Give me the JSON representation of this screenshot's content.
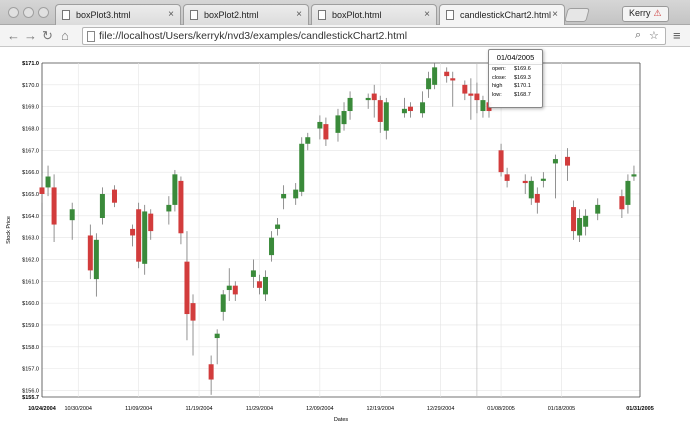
{
  "browser": {
    "tabs": [
      {
        "label": "boxPlot3.html"
      },
      {
        "label": "boxPlot2.html"
      },
      {
        "label": "boxPlot.html"
      },
      {
        "label": "candlestickChart2.html"
      }
    ],
    "profile_name": "Kerry",
    "url": "file://localhost/Users/kerryk/nvd3/examples/candlestickChart2.html",
    "icons": [
      "back-icon",
      "forward-icon",
      "reload-icon",
      "home-icon",
      "search-icon",
      "star-icon",
      "menu-icon"
    ]
  },
  "tooltip": {
    "date": "01/04/2005",
    "rows": [
      {
        "key": "open:",
        "value": "$169.6"
      },
      {
        "key": "close:",
        "value": "$169.3"
      },
      {
        "key": "high",
        "value": "$170.1"
      },
      {
        "key": "low:",
        "value": "$168.7"
      }
    ]
  },
  "chart_data": {
    "type": "candlestick",
    "title": "",
    "xlabel": "Dates",
    "ylabel": "Stock Price",
    "ylim": [
      155.7,
      171.0
    ],
    "xlim": [
      "10/24/2004",
      "01/31/2005"
    ],
    "x_ticks": [
      "10/24/2004",
      "10/30/2004",
      "11/09/2004",
      "11/19/2004",
      "11/29/2004",
      "12/09/2004",
      "12/19/2004",
      "12/29/2004",
      "01/08/2005",
      "01/18/2005",
      "01/31/2005"
    ],
    "y_ticks": [
      "$155.7",
      "$156.0",
      "$157.0",
      "$158.0",
      "$159.0",
      "$160.0",
      "$161.0",
      "$162.0",
      "$163.0",
      "$164.0",
      "$165.0",
      "$166.0",
      "$167.0",
      "$168.0",
      "$169.0",
      "$170.0",
      "$171.0"
    ],
    "up_color": "#3a8a3a",
    "down_color": "#d23c3c",
    "grid": true,
    "candles": [
      {
        "date": "10/24/2004",
        "open": 165.3,
        "close": 165.0,
        "high": 165.8,
        "low": 164.6
      },
      {
        "date": "10/25/2004",
        "open": 165.3,
        "close": 165.8,
        "high": 166.3,
        "low": 164.9
      },
      {
        "date": "10/26/2004",
        "open": 165.3,
        "close": 163.6,
        "high": 165.9,
        "low": 162.8
      },
      {
        "date": "10/29/2004",
        "open": 163.8,
        "close": 164.3,
        "high": 164.6,
        "low": 162.9
      },
      {
        "date": "11/01/2004",
        "open": 163.1,
        "close": 161.5,
        "high": 163.6,
        "low": 161.1
      },
      {
        "date": "11/02/2004",
        "open": 161.1,
        "close": 162.9,
        "high": 163.2,
        "low": 160.3
      },
      {
        "date": "11/03/2004",
        "open": 163.9,
        "close": 165.0,
        "high": 165.3,
        "low": 163.6
      },
      {
        "date": "11/05/2004",
        "open": 165.2,
        "close": 164.6,
        "high": 165.4,
        "low": 164.4
      },
      {
        "date": "11/08/2004",
        "open": 163.4,
        "close": 163.1,
        "high": 163.6,
        "low": 162.6
      },
      {
        "date": "11/09/2004",
        "open": 164.3,
        "close": 161.9,
        "high": 164.6,
        "low": 161.6
      },
      {
        "date": "11/10/2004",
        "open": 161.8,
        "close": 164.2,
        "high": 164.5,
        "low": 161.3
      },
      {
        "date": "11/11/2004",
        "open": 164.1,
        "close": 163.3,
        "high": 164.3,
        "low": 162.9
      },
      {
        "date": "11/14/2004",
        "open": 164.2,
        "close": 164.5,
        "high": 164.9,
        "low": 163.6
      },
      {
        "date": "11/15/2004",
        "open": 164.5,
        "close": 165.9,
        "high": 166.1,
        "low": 164.2
      },
      {
        "date": "11/16/2004",
        "open": 165.6,
        "close": 163.2,
        "high": 165.8,
        "low": 162.7
      },
      {
        "date": "11/17/2004",
        "open": 161.9,
        "close": 159.5,
        "high": 163.3,
        "low": 158.3
      },
      {
        "date": "11/18/2004",
        "open": 160.0,
        "close": 159.2,
        "high": 160.4,
        "low": 157.6
      },
      {
        "date": "11/21/2004",
        "open": 157.2,
        "close": 156.5,
        "high": 157.6,
        "low": 155.8
      },
      {
        "date": "11/22/2004",
        "open": 158.4,
        "close": 158.6,
        "high": 158.8,
        "low": 157.2
      },
      {
        "date": "11/23/2004",
        "open": 159.6,
        "close": 160.4,
        "high": 160.6,
        "low": 159.2
      },
      {
        "date": "11/24/2004",
        "open": 160.6,
        "close": 160.8,
        "high": 161.6,
        "low": 160.1
      },
      {
        "date": "11/25/2004",
        "open": 160.8,
        "close": 160.4,
        "high": 161.0,
        "low": 160.1
      },
      {
        "date": "11/28/2004",
        "open": 161.2,
        "close": 161.5,
        "high": 162.0,
        "low": 160.7
      },
      {
        "date": "11/29/2004",
        "open": 161.0,
        "close": 160.7,
        "high": 161.3,
        "low": 160.4
      },
      {
        "date": "11/30/2004",
        "open": 160.4,
        "close": 161.2,
        "high": 161.5,
        "low": 160.1
      },
      {
        "date": "12/01/2004",
        "open": 162.2,
        "close": 163.0,
        "high": 163.3,
        "low": 161.9
      },
      {
        "date": "12/02/2004",
        "open": 163.4,
        "close": 163.6,
        "high": 163.9,
        "low": 163.1
      },
      {
        "date": "12/03/2004",
        "open": 164.8,
        "close": 165.0,
        "high": 165.4,
        "low": 164.3
      },
      {
        "date": "12/05/2004",
        "open": 164.8,
        "close": 165.2,
        "high": 165.5,
        "low": 164.5
      },
      {
        "date": "12/06/2004",
        "open": 165.1,
        "close": 167.3,
        "high": 167.6,
        "low": 164.9
      },
      {
        "date": "12/07/2004",
        "open": 167.3,
        "close": 167.6,
        "high": 167.8,
        "low": 167.0
      },
      {
        "date": "12/09/2004",
        "open": 168.0,
        "close": 168.3,
        "high": 168.6,
        "low": 167.5
      },
      {
        "date": "12/10/2004",
        "open": 168.2,
        "close": 167.5,
        "high": 168.5,
        "low": 167.2
      },
      {
        "date": "12/12/2004",
        "open": 167.8,
        "close": 168.6,
        "high": 168.9,
        "low": 167.4
      },
      {
        "date": "12/13/2004",
        "open": 168.2,
        "close": 168.8,
        "high": 169.2,
        "low": 167.9
      },
      {
        "date": "12/14/2004",
        "open": 168.8,
        "close": 169.4,
        "high": 169.7,
        "low": 168.4
      },
      {
        "date": "12/17/2004",
        "open": 169.3,
        "close": 169.4,
        "high": 169.6,
        "low": 168.9
      },
      {
        "date": "12/18/2004",
        "open": 169.6,
        "close": 169.3,
        "high": 170.0,
        "low": 168.5
      },
      {
        "date": "12/19/2004",
        "open": 169.3,
        "close": 168.3,
        "high": 169.5,
        "low": 167.8
      },
      {
        "date": "12/20/2004",
        "open": 167.9,
        "close": 169.2,
        "high": 169.4,
        "low": 167.5
      },
      {
        "date": "12/23/2004",
        "open": 168.7,
        "close": 168.9,
        "high": 169.4,
        "low": 168.5
      },
      {
        "date": "12/24/2004",
        "open": 169.0,
        "close": 168.8,
        "high": 169.2,
        "low": 168.5
      },
      {
        "date": "12/26/2004",
        "open": 168.7,
        "close": 169.2,
        "high": 169.7,
        "low": 168.5
      },
      {
        "date": "12/27/2004",
        "open": 169.8,
        "close": 170.3,
        "high": 170.6,
        "low": 169.4
      },
      {
        "date": "12/28/2004",
        "open": 170.0,
        "close": 170.8,
        "high": 171.0,
        "low": 169.8
      },
      {
        "date": "12/30/2004",
        "open": 170.6,
        "close": 170.4,
        "high": 170.8,
        "low": 170.1
      },
      {
        "date": "12/31/2004",
        "open": 170.3,
        "close": 170.2,
        "high": 170.6,
        "low": 169.0
      },
      {
        "date": "01/02/2005",
        "open": 170.0,
        "close": 169.6,
        "high": 170.2,
        "low": 169.3
      },
      {
        "date": "01/03/2005",
        "open": 169.6,
        "close": 169.5,
        "high": 170.3,
        "low": 168.4
      },
      {
        "date": "01/04/2005",
        "open": 169.6,
        "close": 169.3,
        "high": 170.1,
        "low": 168.7
      },
      {
        "date": "01/05/2005",
        "open": 168.8,
        "close": 169.3,
        "high": 169.5,
        "low": 168.5
      },
      {
        "date": "01/06/2005",
        "open": 169.2,
        "close": 168.8,
        "high": 169.6,
        "low": 168.5
      },
      {
        "date": "01/08/2005",
        "open": 167.0,
        "close": 166.0,
        "high": 167.3,
        "low": 165.8
      },
      {
        "date": "01/09/2005",
        "open": 165.9,
        "close": 165.6,
        "high": 166.2,
        "low": 165.3
      },
      {
        "date": "01/12/2005",
        "open": 165.6,
        "close": 165.5,
        "high": 165.9,
        "low": 165.0
      },
      {
        "date": "01/13/2005",
        "open": 164.8,
        "close": 165.6,
        "high": 165.8,
        "low": 164.5
      },
      {
        "date": "01/14/2005",
        "open": 165.0,
        "close": 164.6,
        "high": 165.3,
        "low": 164.1
      },
      {
        "date": "01/15/2005",
        "open": 165.6,
        "close": 165.7,
        "high": 166.0,
        "low": 165.3
      },
      {
        "date": "01/17/2005",
        "open": 166.4,
        "close": 166.6,
        "high": 166.8,
        "low": 164.8
      },
      {
        "date": "01/19/2005",
        "open": 166.7,
        "close": 166.3,
        "high": 167.1,
        "low": 165.6
      },
      {
        "date": "01/20/2005",
        "open": 164.4,
        "close": 163.3,
        "high": 164.7,
        "low": 162.9
      },
      {
        "date": "01/21/2005",
        "open": 163.1,
        "close": 163.9,
        "high": 164.3,
        "low": 162.8
      },
      {
        "date": "01/22/2005",
        "open": 163.5,
        "close": 164.0,
        "high": 164.3,
        "low": 163.1
      },
      {
        "date": "01/24/2005",
        "open": 164.1,
        "close": 164.5,
        "high": 164.8,
        "low": 163.8
      },
      {
        "date": "01/28/2005",
        "open": 164.9,
        "close": 164.3,
        "high": 165.2,
        "low": 163.9
      },
      {
        "date": "01/29/2005",
        "open": 164.5,
        "close": 165.6,
        "high": 165.9,
        "low": 164.1
      },
      {
        "date": "01/30/2005",
        "open": 165.8,
        "close": 165.9,
        "high": 166.3,
        "low": 165.6
      }
    ]
  }
}
